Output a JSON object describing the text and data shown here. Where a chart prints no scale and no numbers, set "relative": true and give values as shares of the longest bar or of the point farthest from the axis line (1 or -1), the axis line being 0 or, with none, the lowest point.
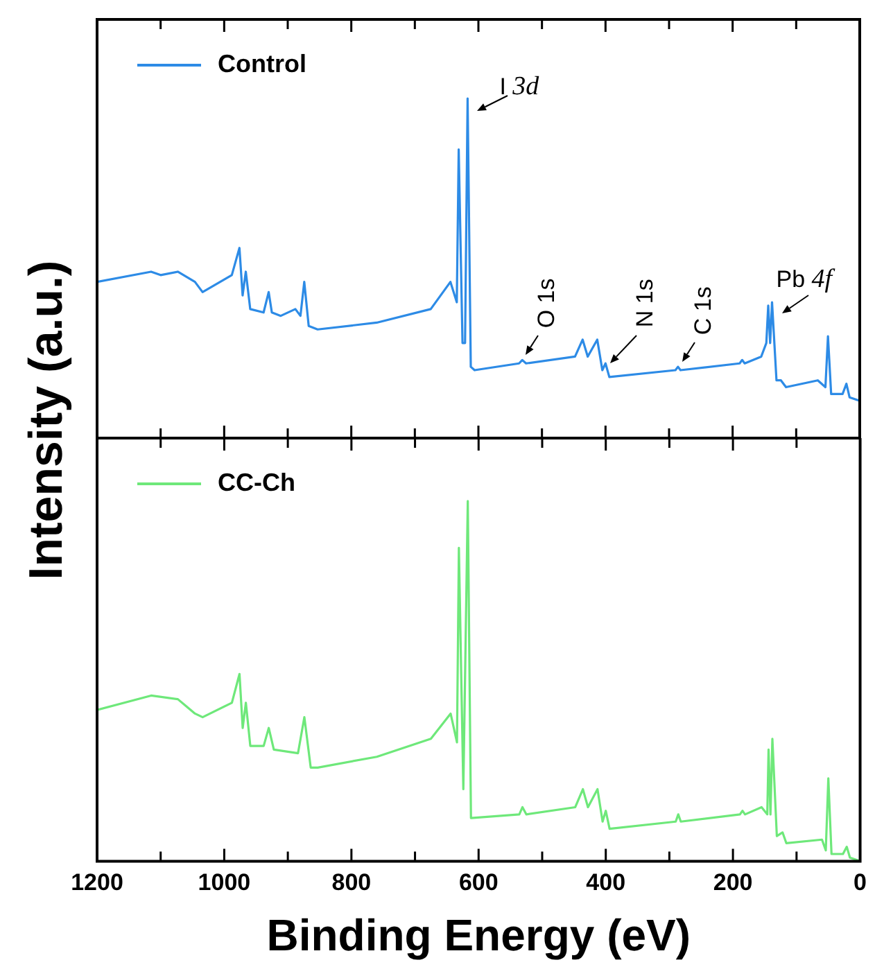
{
  "chart_data": [
    {
      "type": "line",
      "ylabel": "Intensity (a.u.)",
      "xlim": [
        1200,
        0
      ],
      "xticks": [
        1200,
        {
          "value": 1100,
          "label": null
        },
        1000,
        {
          "value": 900,
          "label": null
        },
        800,
        {
          "value": 700,
          "label": null
        },
        600,
        {
          "value": 500,
          "label": null
        },
        400,
        {
          "value": 300,
          "label": null
        },
        200,
        {
          "value": 100,
          "label": null
        },
        0
      ],
      "tick_labels": false,
      "relative": true,
      "legend": "top left",
      "marker": "none",
      "series": [
        {
          "name": "Control",
          "color": "#2d8be6",
          "x": [
            1200,
            1115,
            1100,
            1073,
            1046,
            1034,
            988,
            976,
            971,
            966,
            959,
            938,
            930,
            925,
            911,
            888,
            880,
            874,
            867,
            853,
            760,
            675,
            644,
            634,
            631,
            625,
            621,
            617,
            612,
            606,
            536,
            531,
            525,
            448,
            436,
            428,
            413,
            405,
            400,
            394,
            290,
            286,
            282,
            189,
            185,
            181,
            155,
            147,
            144,
            141,
            138,
            131,
            124,
            116,
            66,
            54,
            50,
            45,
            27,
            21,
            16,
            0
          ],
          "values": [
            0.46,
            0.49,
            0.48,
            0.49,
            0.46,
            0.43,
            0.48,
            0.56,
            0.42,
            0.49,
            0.38,
            0.37,
            0.43,
            0.37,
            0.36,
            0.38,
            0.36,
            0.46,
            0.33,
            0.32,
            0.34,
            0.38,
            0.46,
            0.4,
            0.85,
            0.28,
            0.28,
            1.0,
            0.21,
            0.2,
            0.22,
            0.23,
            0.22,
            0.24,
            0.29,
            0.24,
            0.29,
            0.2,
            0.22,
            0.18,
            0.2,
            0.21,
            0.2,
            0.22,
            0.23,
            0.22,
            0.24,
            0.28,
            0.39,
            0.28,
            0.4,
            0.17,
            0.17,
            0.15,
            0.17,
            0.15,
            0.3,
            0.13,
            0.13,
            0.16,
            0.12,
            0.11
          ]
        }
      ],
      "annotations": [
        {
          "text": "I 3d",
          "x": 617,
          "y": 1.0
        },
        {
          "text": "O 1s",
          "x": 531,
          "y": 0.23
        },
        {
          "text": "N 1s",
          "x": 400,
          "y": 0.22
        },
        {
          "text": "C 1s",
          "x": 286,
          "y": 0.21
        },
        {
          "text": "Pb 4f",
          "x": 138,
          "y": 0.4
        }
      ]
    },
    {
      "type": "line",
      "xlabel": "Binding Energy (eV)",
      "xlim": [
        1200,
        0
      ],
      "xticks": [
        1200,
        {
          "value": 1100,
          "label": null
        },
        1000,
        {
          "value": 900,
          "label": null
        },
        800,
        {
          "value": 700,
          "label": null
        },
        600,
        {
          "value": 500,
          "label": null
        },
        400,
        {
          "value": 300,
          "label": null
        },
        200,
        {
          "value": 100,
          "label": null
        },
        0
      ],
      "tick_labels": "x",
      "relative": true,
      "legend": "top left",
      "marker": "none",
      "series": [
        {
          "name": "CC-Ch",
          "color": "#6ee87a",
          "x": [
            1200,
            1115,
            1073,
            1046,
            1034,
            988,
            976,
            971,
            966,
            959,
            938,
            930,
            922,
            884,
            874,
            864,
            853,
            760,
            675,
            644,
            634,
            631,
            624,
            617,
            612,
            536,
            531,
            525,
            448,
            436,
            428,
            413,
            405,
            400,
            394,
            290,
            286,
            282,
            189,
            185,
            181,
            155,
            146,
            144,
            141,
            138,
            131,
            122,
            116,
            60,
            54,
            50,
            45,
            27,
            21,
            16,
            0
          ],
          "values": [
            0.42,
            0.46,
            0.45,
            0.41,
            0.4,
            0.44,
            0.52,
            0.37,
            0.44,
            0.32,
            0.32,
            0.37,
            0.31,
            0.3,
            0.4,
            0.26,
            0.26,
            0.29,
            0.34,
            0.41,
            0.33,
            0.87,
            0.2,
            1.0,
            0.12,
            0.13,
            0.15,
            0.13,
            0.15,
            0.2,
            0.15,
            0.2,
            0.11,
            0.14,
            0.09,
            0.11,
            0.13,
            0.11,
            0.13,
            0.14,
            0.13,
            0.15,
            0.13,
            0.31,
            0.13,
            0.34,
            0.07,
            0.08,
            0.05,
            0.06,
            0.03,
            0.23,
            0.02,
            0.02,
            0.04,
            0.01,
            0
          ]
        }
      ]
    }
  ]
}
